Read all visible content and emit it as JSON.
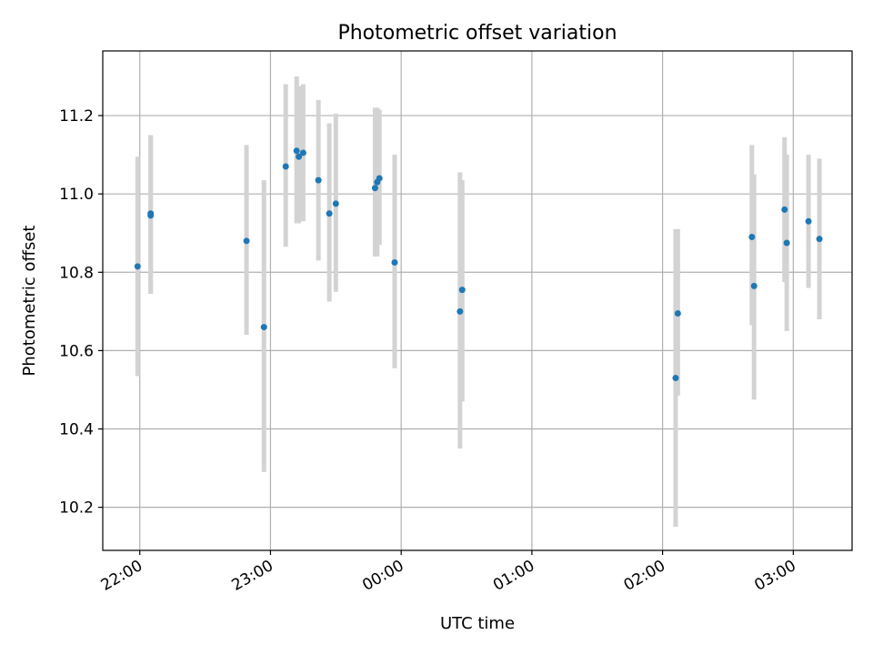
{
  "chart_data": {
    "type": "scatter",
    "title": "Photometric offset variation",
    "xlabel": "UTC time",
    "ylabel": "Photometric offset",
    "x_axis_type": "time",
    "xlim": [
      "21:43",
      "03:27"
    ],
    "ylim": [
      10.09,
      11.365
    ],
    "x_ticks": [
      "22:00",
      "23:00",
      "00:00",
      "01:00",
      "02:00",
      "03:00"
    ],
    "y_ticks": [
      10.2,
      10.4,
      10.6,
      10.8,
      11.0,
      11.2
    ],
    "grid": true,
    "point_color": "#1f77b4",
    "errorbar_color": "#d3d3d3",
    "points": [
      {
        "time": "21:59",
        "y": 10.815,
        "ylow": 10.535,
        "yhigh": 11.095
      },
      {
        "time": "22:05",
        "y": 10.945,
        "ylow": 10.745,
        "yhigh": 11.15
      },
      {
        "time": "22:05",
        "y": 10.95,
        "ylow": 10.745,
        "yhigh": 11.15
      },
      {
        "time": "22:49",
        "y": 10.88,
        "ylow": 10.64,
        "yhigh": 11.125
      },
      {
        "time": "22:57",
        "y": 10.66,
        "ylow": 10.29,
        "yhigh": 11.035
      },
      {
        "time": "23:07",
        "y": 11.07,
        "ylow": 10.865,
        "yhigh": 11.28
      },
      {
        "time": "23:12",
        "y": 11.11,
        "ylow": 10.925,
        "yhigh": 11.3
      },
      {
        "time": "23:13",
        "y": 11.095,
        "ylow": 10.925,
        "yhigh": 11.275
      },
      {
        "time": "23:15",
        "y": 11.105,
        "ylow": 10.93,
        "yhigh": 11.28
      },
      {
        "time": "23:22",
        "y": 11.035,
        "ylow": 10.83,
        "yhigh": 11.24
      },
      {
        "time": "23:27",
        "y": 10.95,
        "ylow": 10.725,
        "yhigh": 11.18
      },
      {
        "time": "23:30",
        "y": 10.975,
        "ylow": 10.75,
        "yhigh": 11.205
      },
      {
        "time": "23:48",
        "y": 11.015,
        "ylow": 10.84,
        "yhigh": 11.22
      },
      {
        "time": "23:49",
        "y": 11.03,
        "ylow": 10.84,
        "yhigh": 11.22
      },
      {
        "time": "23:50",
        "y": 11.04,
        "ylow": 10.87,
        "yhigh": 11.215
      },
      {
        "time": "23:57",
        "y": 10.825,
        "ylow": 10.555,
        "yhigh": 11.1
      },
      {
        "time": "00:27",
        "y": 10.7,
        "ylow": 10.35,
        "yhigh": 11.055
      },
      {
        "time": "00:28",
        "y": 10.755,
        "ylow": 10.47,
        "yhigh": 11.035
      },
      {
        "time": "02:06",
        "y": 10.53,
        "ylow": 10.15,
        "yhigh": 10.91
      },
      {
        "time": "02:07",
        "y": 10.695,
        "ylow": 10.485,
        "yhigh": 10.91
      },
      {
        "time": "02:41",
        "y": 10.89,
        "ylow": 10.665,
        "yhigh": 11.125
      },
      {
        "time": "02:42",
        "y": 10.765,
        "ylow": 10.475,
        "yhigh": 11.05
      },
      {
        "time": "02:56",
        "y": 10.96,
        "ylow": 10.775,
        "yhigh": 11.145
      },
      {
        "time": "02:57",
        "y": 10.875,
        "ylow": 10.65,
        "yhigh": 11.1
      },
      {
        "time": "03:07",
        "y": 10.93,
        "ylow": 10.76,
        "yhigh": 11.1
      },
      {
        "time": "03:12",
        "y": 10.885,
        "ylow": 10.68,
        "yhigh": 11.09
      }
    ]
  }
}
